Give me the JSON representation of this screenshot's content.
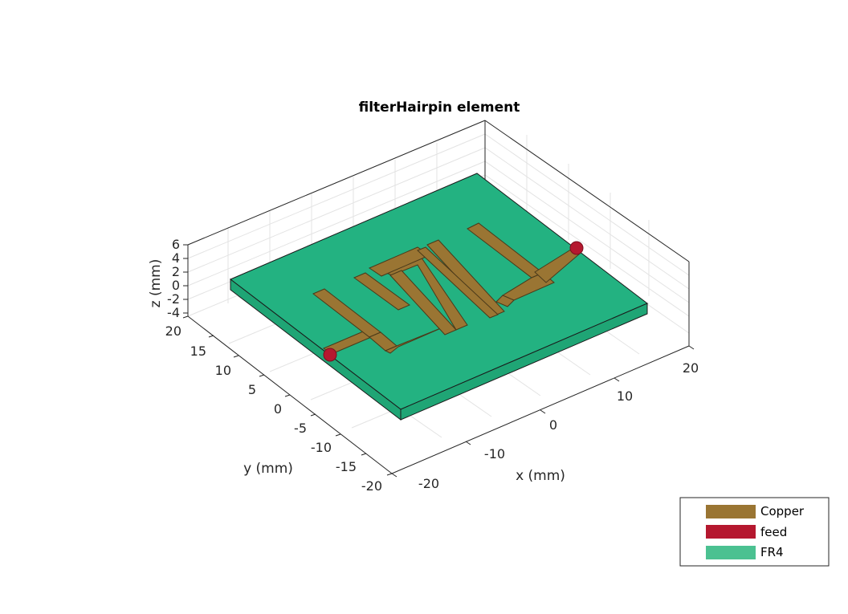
{
  "figure": {
    "title": "filterHairpin element",
    "xlabel": "x (mm)",
    "ylabel": "y (mm)",
    "zlabel": "z (mm)",
    "x_ticks": [
      "-20",
      "-10",
      "0",
      "10",
      "20"
    ],
    "y_ticks": [
      "-20",
      "-15",
      "-10",
      "-5",
      "0",
      "5",
      "10",
      "15",
      "20"
    ],
    "z_ticks": [
      "-4",
      "-2",
      "0",
      "2",
      "4",
      "6"
    ]
  },
  "legend": {
    "placement": "bottom-right",
    "items": [
      {
        "label": "Copper",
        "color": "#9a7533"
      },
      {
        "label": "feed",
        "color": "#b5182f"
      },
      {
        "label": "FR4",
        "color": "#4bc191"
      }
    ]
  },
  "colors": {
    "substrate_top": "#23b281",
    "substrate_side": "#1fa575",
    "copper": "#9a7533",
    "feed": "#b5182f",
    "grid": "#e3e3e3",
    "axis": "#262626"
  }
}
